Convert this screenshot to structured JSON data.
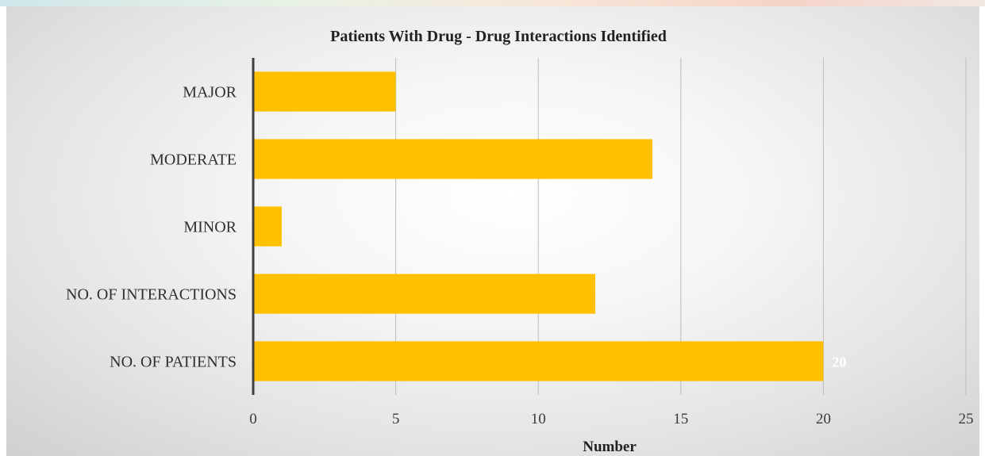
{
  "chart_data": {
    "type": "bar",
    "orientation": "horizontal",
    "title": "Patients With Drug - Drug Interactions Identified",
    "xlabel": "Number",
    "ylabel": "",
    "categories": [
      "MAJOR",
      "MODERATE",
      "MINOR",
      "NO. OF INTERACTIONS",
      "NO. OF PATIENTS"
    ],
    "values": [
      5,
      14,
      1,
      12,
      20
    ],
    "data_labels": [
      "",
      "",
      "",
      "",
      "20"
    ],
    "xlim": [
      0,
      25
    ],
    "xticks": [
      "0",
      "5",
      "10",
      "15",
      "20",
      "25"
    ],
    "grid": "vertical",
    "legend": "none",
    "bar_color": "#FFC000"
  }
}
